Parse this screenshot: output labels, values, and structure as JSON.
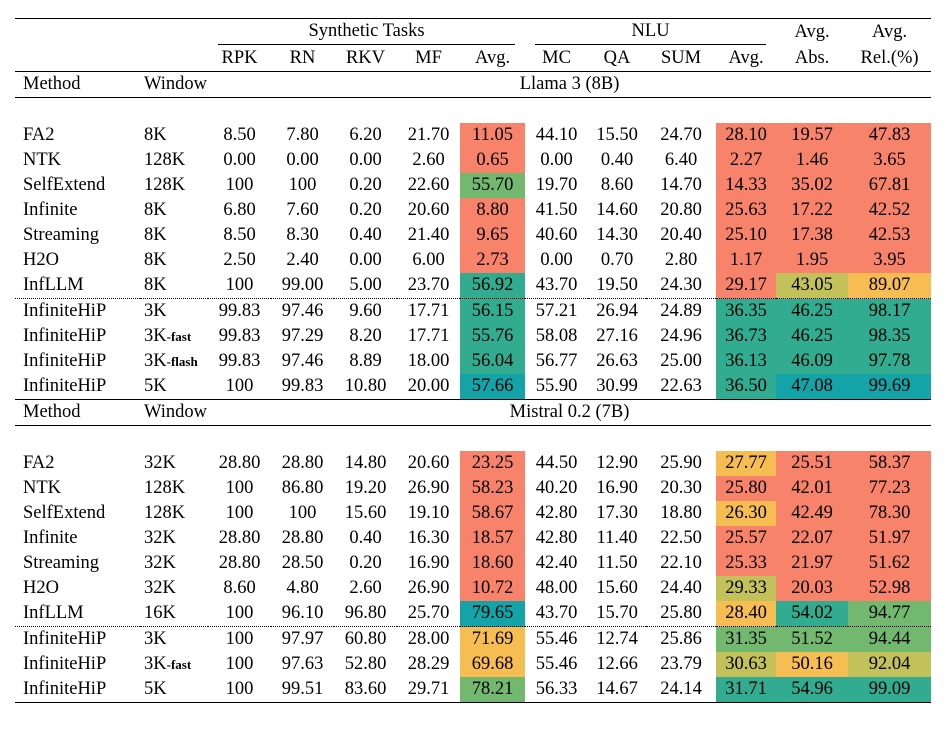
{
  "header": {
    "synthetic_group": "Synthetic Tasks",
    "nlu_group": "NLU",
    "avg_abs": [
      "Avg.",
      "Abs."
    ],
    "avg_rel": [
      "Avg.",
      "Rel.(%)"
    ],
    "cols": [
      "RPK",
      "RN",
      "RKV",
      "MF",
      "Avg.",
      "MC",
      "QA",
      "SUM",
      "Avg."
    ],
    "method_label": "Method",
    "window_label": "Window"
  },
  "sections": [
    {
      "model": "Llama 3 (8B)",
      "rows": [
        {
          "method": "FA2",
          "window": "8K",
          "vals": [
            "8.50",
            "7.80",
            "6.20",
            "21.70",
            "11.05",
            "44.10",
            "15.50",
            "24.70",
            "28.10",
            "19.57",
            "47.83"
          ],
          "bold": [],
          "colors": [
            "red",
            "red",
            "red",
            "red"
          ]
        },
        {
          "method": "NTK",
          "window": "128K",
          "vals": [
            "0.00",
            "0.00",
            "0.00",
            "2.60",
            "0.65",
            "0.00",
            "0.40",
            "6.40",
            "2.27",
            "1.46",
            "3.65"
          ],
          "bold": [],
          "colors": [
            "red",
            "red",
            "red",
            "red"
          ]
        },
        {
          "method": "SelfExtend",
          "window": "128K",
          "vals": [
            "100",
            "100",
            "0.20",
            "22.60",
            "55.70",
            "19.70",
            "8.60",
            "14.70",
            "14.33",
            "35.02",
            "67.81"
          ],
          "bold": [
            0,
            1
          ],
          "colors": [
            "green",
            "red",
            "red",
            "red"
          ]
        },
        {
          "method": "Infinite",
          "window": "8K",
          "vals": [
            "6.80",
            "7.60",
            "0.20",
            "20.60",
            "8.80",
            "41.50",
            "14.60",
            "20.80",
            "25.63",
            "17.22",
            "42.52"
          ],
          "bold": [],
          "colors": [
            "red",
            "red",
            "red",
            "red"
          ]
        },
        {
          "method": "Streaming",
          "window": "8K",
          "vals": [
            "8.50",
            "8.30",
            "0.40",
            "21.40",
            "9.65",
            "40.60",
            "14.30",
            "20.40",
            "25.10",
            "17.38",
            "42.53"
          ],
          "bold": [],
          "colors": [
            "red",
            "red",
            "red",
            "red"
          ]
        },
        {
          "method": "H2O",
          "window": "8K",
          "vals": [
            "2.50",
            "2.40",
            "0.00",
            "6.00",
            "2.73",
            "0.00",
            "0.70",
            "2.80",
            "1.17",
            "1.95",
            "3.95"
          ],
          "bold": [],
          "colors": [
            "red",
            "red",
            "red",
            "red"
          ]
        },
        {
          "method": "InfLLM",
          "window": "8K",
          "vals": [
            "100",
            "99.00",
            "5.00",
            "23.70",
            "56.92",
            "43.70",
            "19.50",
            "24.30",
            "29.17",
            "43.05",
            "89.07"
          ],
          "bold": [
            0,
            3
          ],
          "colors": [
            "teal",
            "red",
            "lime",
            "orange"
          ]
        },
        {
          "method": "InfiniteHiP",
          "window": "3K",
          "wsub": "",
          "ours": true,
          "vals": [
            "99.83",
            "97.46",
            "9.60",
            "17.71",
            "56.15",
            "57.21",
            "26.94",
            "24.89",
            "36.35",
            "46.25",
            "98.17"
          ],
          "bold": [],
          "colors": [
            "teal",
            "teal",
            "teal",
            "teal"
          ]
        },
        {
          "method": "InfiniteHiP",
          "window": "3K",
          "wsub": "-fast",
          "ours": true,
          "vals": [
            "99.83",
            "97.29",
            "8.20",
            "17.71",
            "55.76",
            "58.08",
            "27.16",
            "24.96",
            "36.73",
            "46.25",
            "98.35"
          ],
          "bold": [
            5,
            8
          ],
          "colors": [
            "teal",
            "teal",
            "teal",
            "teal"
          ]
        },
        {
          "method": "InfiniteHiP",
          "window": "3K",
          "wsub": "-flash",
          "ours": true,
          "vals": [
            "99.83",
            "97.46",
            "8.89",
            "18.00",
            "56.04",
            "56.77",
            "26.63",
            "25.00",
            "36.13",
            "46.09",
            "97.78"
          ],
          "bold": [
            7
          ],
          "colors": [
            "teal",
            "teal",
            "teal",
            "teal"
          ]
        },
        {
          "method": "InfiniteHiP",
          "window": "5K",
          "wsub": "",
          "ours": true,
          "vals": [
            "100",
            "99.83",
            "10.80",
            "20.00",
            "57.66",
            "55.90",
            "30.99",
            "22.63",
            "36.50",
            "47.08",
            "99.69"
          ],
          "bold": [
            0,
            2,
            4,
            6,
            9,
            10
          ],
          "colors": [
            "cyan",
            "teal",
            "cyan",
            "cyan"
          ]
        }
      ]
    },
    {
      "model": "Mistral 0.2 (7B)",
      "rows": [
        {
          "method": "FA2",
          "window": "32K",
          "vals": [
            "28.80",
            "28.80",
            "14.80",
            "20.60",
            "23.25",
            "44.50",
            "12.90",
            "25.90",
            "27.77",
            "25.51",
            "58.37"
          ],
          "bold": [],
          "colors": [
            "red",
            "orange",
            "red",
            "red"
          ]
        },
        {
          "method": "NTK",
          "window": "128K",
          "vals": [
            "100",
            "86.80",
            "19.20",
            "26.90",
            "58.23",
            "40.20",
            "16.90",
            "20.30",
            "25.80",
            "42.01",
            "77.23"
          ],
          "bold": [
            0
          ],
          "colors": [
            "red",
            "red",
            "red",
            "red"
          ]
        },
        {
          "method": "SelfExtend",
          "window": "128K",
          "vals": [
            "100",
            "100",
            "15.60",
            "19.10",
            "58.67",
            "42.80",
            "17.30",
            "18.80",
            "26.30",
            "42.49",
            "78.30"
          ],
          "bold": [
            0,
            1,
            6
          ],
          "colors": [
            "red",
            "orange",
            "red",
            "red"
          ]
        },
        {
          "method": "Infinite",
          "window": "32K",
          "vals": [
            "28.80",
            "28.80",
            "0.40",
            "16.30",
            "18.57",
            "42.80",
            "11.40",
            "22.50",
            "25.57",
            "22.07",
            "51.97"
          ],
          "bold": [],
          "colors": [
            "red",
            "red",
            "red",
            "red"
          ]
        },
        {
          "method": "Streaming",
          "window": "32K",
          "vals": [
            "28.80",
            "28.50",
            "0.20",
            "16.90",
            "18.60",
            "42.40",
            "11.50",
            "22.10",
            "25.33",
            "21.97",
            "51.62"
          ],
          "bold": [],
          "colors": [
            "red",
            "red",
            "red",
            "red"
          ]
        },
        {
          "method": "H2O",
          "window": "32K",
          "vals": [
            "8.60",
            "4.80",
            "2.60",
            "26.90",
            "10.72",
            "48.00",
            "15.60",
            "24.40",
            "29.33",
            "20.03",
            "52.98"
          ],
          "bold": [],
          "colors": [
            "red",
            "lime",
            "red",
            "red"
          ]
        },
        {
          "method": "InfLLM",
          "window": "16K",
          "vals": [
            "100",
            "96.10",
            "96.80",
            "25.70",
            "79.65",
            "43.70",
            "15.70",
            "25.80",
            "28.40",
            "54.02",
            "94.77"
          ],
          "bold": [
            0,
            2,
            4
          ],
          "colors": [
            "cyan",
            "orange",
            "teal",
            "green"
          ]
        },
        {
          "method": "InfiniteHiP",
          "window": "3K",
          "wsub": "",
          "ours": true,
          "vals": [
            "100",
            "97.97",
            "60.80",
            "28.00",
            "71.69",
            "55.46",
            "12.74",
            "25.86",
            "31.35",
            "51.52",
            "94.44"
          ],
          "bold": [
            0,
            7
          ],
          "colors": [
            "orange",
            "green",
            "green",
            "green"
          ]
        },
        {
          "method": "InfiniteHiP",
          "window": "3K",
          "wsub": "-fast",
          "ours": true,
          "vals": [
            "100",
            "97.63",
            "52.80",
            "28.29",
            "69.68",
            "55.46",
            "12.66",
            "23.79",
            "30.63",
            "50.16",
            "92.04"
          ],
          "bold": [
            0
          ],
          "colors": [
            "orange",
            "lime",
            "orange",
            "lime"
          ]
        },
        {
          "method": "InfiniteHiP",
          "window": "5K",
          "wsub": "",
          "ours": true,
          "vals": [
            "100",
            "99.51",
            "83.60",
            "29.71",
            "78.21",
            "56.33",
            "14.67",
            "24.14",
            "31.71",
            "54.96",
            "99.09"
          ],
          "bold": [
            0,
            3,
            5,
            8,
            9,
            10
          ],
          "colors": [
            "green",
            "teal",
            "teal",
            "teal"
          ]
        }
      ]
    }
  ]
}
